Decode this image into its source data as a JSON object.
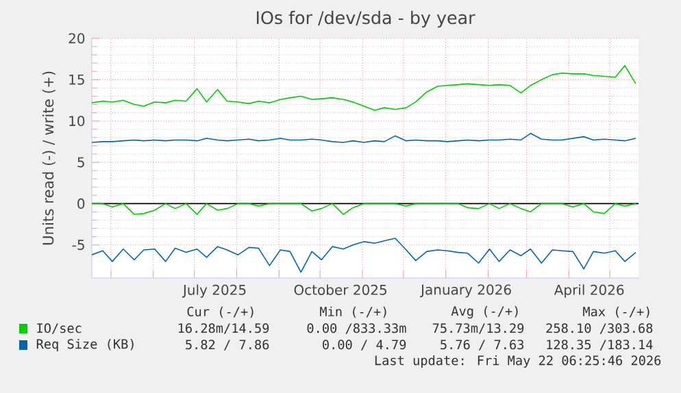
{
  "chart_data": {
    "type": "line",
    "title": "IOs for /dev/sda - by year",
    "ylabel": "Units read (-) / write (+)",
    "x": [
      "2025-04-17",
      "2025-04-25",
      "2025-05-02",
      "2025-05-10",
      "2025-05-18",
      "2025-05-25",
      "2025-06-02",
      "2025-06-10",
      "2025-06-17",
      "2025-06-25",
      "2025-07-03",
      "2025-07-10",
      "2025-07-18",
      "2025-07-25",
      "2025-08-02",
      "2025-08-10",
      "2025-08-17",
      "2025-08-25",
      "2025-09-02",
      "2025-09-09",
      "2025-09-17",
      "2025-09-25",
      "2025-10-02",
      "2025-10-10",
      "2025-10-18",
      "2025-10-25",
      "2025-11-02",
      "2025-11-10",
      "2025-11-17",
      "2025-11-25",
      "2025-12-03",
      "2025-12-10",
      "2025-12-18",
      "2025-12-26",
      "2026-01-02",
      "2026-01-10",
      "2026-01-17",
      "2026-01-25",
      "2026-02-02",
      "2026-02-09",
      "2026-02-17",
      "2026-02-25",
      "2026-03-04",
      "2026-03-12",
      "2026-03-20",
      "2026-03-27",
      "2026-04-04",
      "2026-04-12",
      "2026-04-19",
      "2026-04-27",
      "2026-05-05",
      "2026-05-12",
      "2026-05-20"
    ],
    "series": [
      {
        "name": "IO/sec",
        "color": "#00cc00",
        "values": [
          12.2,
          12.4,
          12.3,
          12.5,
          12.0,
          11.8,
          12.3,
          12.2,
          12.5,
          12.4,
          13.9,
          12.3,
          13.8,
          12.4,
          12.3,
          12.1,
          12.4,
          12.2,
          12.6,
          12.8,
          13.0,
          12.6,
          12.7,
          12.8,
          12.6,
          12.3,
          11.8,
          11.3,
          11.6,
          11.4,
          11.6,
          12.3,
          13.5,
          14.2,
          14.3,
          14.4,
          14.5,
          14.4,
          14.3,
          14.4,
          14.3,
          13.4,
          14.3,
          15.0,
          15.6,
          15.8,
          15.7,
          15.7,
          15.5,
          15.4,
          15.3,
          16.7,
          14.5
        ]
      },
      {
        "color": "#00cc00",
        "values": [
          0,
          0,
          -0.4,
          0,
          -1.3,
          -1.2,
          -0.8,
          0,
          -0.6,
          0,
          -1.3,
          0,
          -0.8,
          -0.6,
          0,
          0,
          -0.3,
          0,
          0,
          0,
          0,
          -0.9,
          -0.6,
          0,
          -1.3,
          -0.5,
          0,
          0,
          0,
          0,
          -0.3,
          0,
          0,
          0,
          0,
          0,
          -0.5,
          -0.6,
          0,
          -0.6,
          0,
          -0.6,
          -1.0,
          0,
          0,
          0,
          -0.4,
          0,
          -1.0,
          -1.2,
          0,
          -0.3,
          0
        ]
      },
      {
        "name": "Req Size (KB)",
        "color": "#0066b3",
        "values": [
          7.4,
          7.5,
          7.5,
          7.6,
          7.7,
          7.6,
          7.7,
          7.6,
          7.7,
          7.7,
          7.6,
          7.9,
          7.7,
          7.6,
          7.7,
          7.8,
          7.6,
          7.7,
          7.9,
          7.7,
          7.7,
          7.8,
          7.7,
          7.5,
          7.4,
          7.6,
          7.4,
          7.6,
          7.5,
          8.2,
          7.6,
          7.7,
          7.6,
          7.6,
          7.5,
          7.6,
          7.7,
          7.6,
          7.7,
          7.7,
          7.8,
          7.7,
          8.5,
          7.8,
          7.7,
          7.7,
          7.9,
          8.1,
          7.7,
          7.8,
          7.7,
          7.6,
          7.9
        ]
      },
      {
        "color": "#0066b3",
        "values": [
          -6.2,
          -5.7,
          -7.0,
          -5.5,
          -6.8,
          -5.6,
          -5.5,
          -7.0,
          -5.4,
          -5.9,
          -5.5,
          -6.5,
          -5.2,
          -5.6,
          -6.2,
          -5.3,
          -5.4,
          -7.5,
          -5.6,
          -5.8,
          -8.3,
          -5.8,
          -6.8,
          -5.2,
          -5.5,
          -5.0,
          -4.6,
          -4.8,
          -4.5,
          -4.2,
          -5.6,
          -6.9,
          -5.8,
          -5.6,
          -5.7,
          -5.9,
          -6.0,
          -7.2,
          -5.5,
          -7.0,
          -5.6,
          -6.3,
          -5.5,
          -7.2,
          -5.6,
          -5.7,
          -5.8,
          -7.9,
          -5.8,
          -6.0,
          -5.7,
          -7.0,
          -5.9
        ]
      }
    ],
    "xlim": [
      "2025-04-17",
      "2026-05-22"
    ],
    "xticks": [
      {
        "value": "2025-05-01",
        "label": null
      },
      {
        "value": "2025-06-01",
        "label": null
      },
      {
        "value": "2025-07-01",
        "label": null
      },
      {
        "value": "2025-08-01",
        "label": null
      },
      {
        "value": "2025-09-01",
        "label": null
      },
      {
        "value": "2025-10-01",
        "label": null
      },
      {
        "value": "2025-11-01",
        "label": null
      },
      {
        "value": "2025-12-01",
        "label": null
      },
      {
        "value": "2026-01-01",
        "label": null
      },
      {
        "value": "2026-02-01",
        "label": null
      },
      {
        "value": "2026-03-01",
        "label": null
      },
      {
        "value": "2026-04-01",
        "label": null
      },
      {
        "value": "2026-05-01",
        "label": null
      },
      {
        "value": "2025-07-16",
        "label": "July 2025"
      },
      {
        "value": "2025-10-16",
        "label": "October 2025"
      },
      {
        "value": "2026-01-16",
        "label": "January 2026"
      },
      {
        "value": "2026-04-16",
        "label": "April 2026"
      }
    ],
    "ylim": [
      -9,
      20
    ],
    "yticks": [
      -5,
      0,
      5,
      10,
      15,
      20
    ],
    "ref_lines": [
      {
        "axis": "y",
        "value": 0,
        "color": "#000000"
      }
    ],
    "grid": true,
    "legend": "bottom",
    "line_style": "solid",
    "marker": "none",
    "annotations": [
      "Cur (-/+)",
      "Min (-/+)",
      "Avg (-/+)",
      "Max (-/+)",
      "16.28m/14.59",
      "0.00 /833.33m",
      "75.73m/13.29",
      "258.10 /303.68",
      "5.82 / 7.86",
      "0.00 / 4.79",
      "5.76 / 7.63",
      "128.35 /183.14",
      "Last update: Fri May 22 06:25:46 2026"
    ]
  }
}
